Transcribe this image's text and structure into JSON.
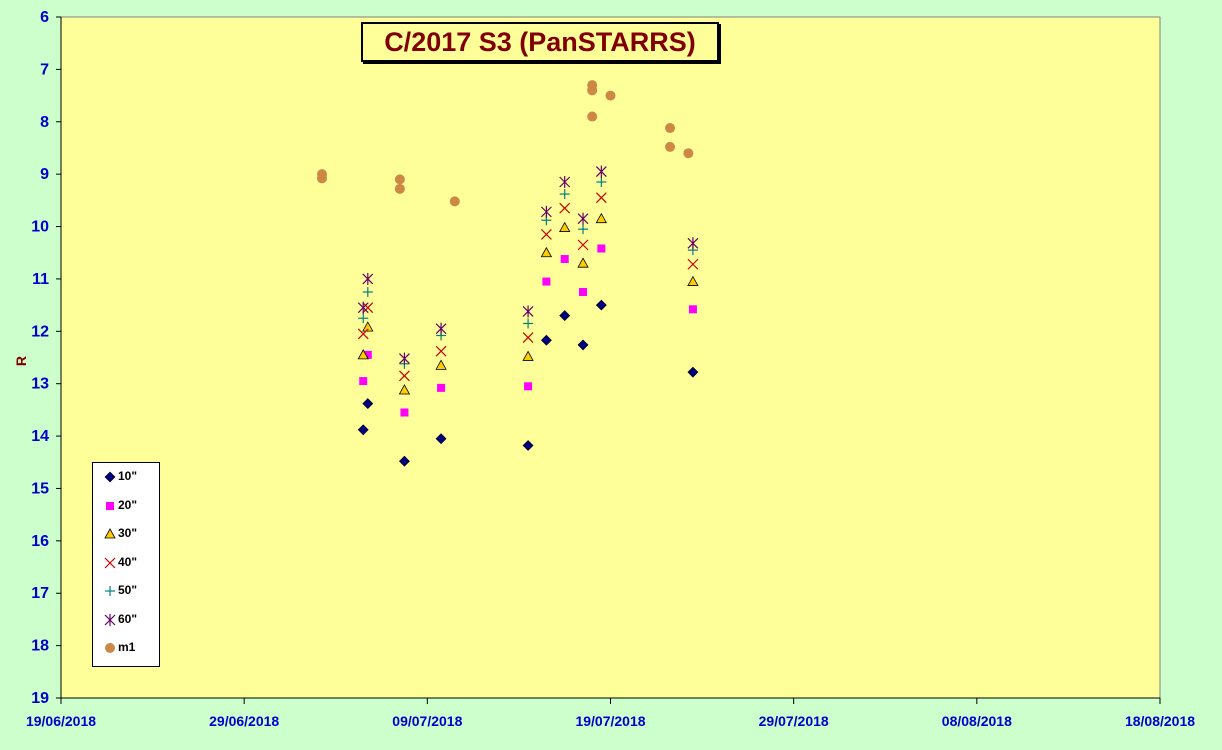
{
  "chart_data": {
    "type": "scatter",
    "title": "C/2017 S3 (PanSTARRS)",
    "xlabel": "",
    "ylabel": "R",
    "x_ticks": [
      "19/06/2018",
      "29/06/2018",
      "09/07/2018",
      "19/07/2018",
      "29/07/2018",
      "08/08/2018",
      "18/08/2018"
    ],
    "xlim": [
      "19/06/2018",
      "18/08/2018"
    ],
    "ylim": [
      19,
      6
    ],
    "y_inverted": true,
    "y_ticks": [
      6,
      7,
      8,
      9,
      10,
      11,
      12,
      13,
      14,
      15,
      16,
      17,
      18,
      19
    ],
    "grid": false,
    "legend_position": "bottom-left",
    "plot_background": "#ffff99",
    "page_background": "#ccffcc",
    "series": [
      {
        "name": "10\"",
        "marker": "diamond",
        "color": "#000080",
        "points": [
          [
            "05/07/2018 12:00",
            13.88
          ],
          [
            "05/07/2018 18:00",
            13.38
          ],
          [
            "07/07/2018 18:00",
            14.48
          ],
          [
            "09/07/2018 18:00",
            14.05
          ],
          [
            "14/07/2018 12:00",
            14.18
          ],
          [
            "15/07/2018 12:00",
            12.17
          ],
          [
            "16/07/2018 12:00",
            11.7
          ],
          [
            "17/07/2018 12:00",
            12.26
          ],
          [
            "18/07/2018 12:00",
            11.5
          ],
          [
            "23/07/2018 12:00",
            12.78
          ]
        ]
      },
      {
        "name": "20\"",
        "marker": "square",
        "color": "#ff00ff",
        "points": [
          [
            "05/07/2018 12:00",
            12.95
          ],
          [
            "05/07/2018 18:00",
            12.45
          ],
          [
            "07/07/2018 18:00",
            13.55
          ],
          [
            "09/07/2018 18:00",
            13.08
          ],
          [
            "14/07/2018 12:00",
            13.05
          ],
          [
            "15/07/2018 12:00",
            11.05
          ],
          [
            "16/07/2018 12:00",
            10.62
          ],
          [
            "17/07/2018 12:00",
            11.25
          ],
          [
            "18/07/2018 12:00",
            10.42
          ],
          [
            "23/07/2018 12:00",
            11.58
          ]
        ]
      },
      {
        "name": "30\"",
        "marker": "triangle",
        "color": "#ffcc00",
        "points": [
          [
            "05/07/2018 12:00",
            12.45
          ],
          [
            "05/07/2018 18:00",
            11.92
          ],
          [
            "07/07/2018 18:00",
            13.12
          ],
          [
            "09/07/2018 18:00",
            12.65
          ],
          [
            "14/07/2018 12:00",
            12.48
          ],
          [
            "15/07/2018 12:00",
            10.5
          ],
          [
            "16/07/2018 12:00",
            10.02
          ],
          [
            "17/07/2018 12:00",
            10.7
          ],
          [
            "18/07/2018 12:00",
            9.85
          ],
          [
            "23/07/2018 12:00",
            11.05
          ]
        ]
      },
      {
        "name": "40\"",
        "marker": "x",
        "color": "#cc0000",
        "points": [
          [
            "05/07/2018 12:00",
            12.05
          ],
          [
            "05/07/2018 18:00",
            11.55
          ],
          [
            "07/07/2018 18:00",
            12.85
          ],
          [
            "09/07/2018 18:00",
            12.38
          ],
          [
            "14/07/2018 12:00",
            12.12
          ],
          [
            "15/07/2018 12:00",
            10.15
          ],
          [
            "16/07/2018 12:00",
            9.65
          ],
          [
            "17/07/2018 12:00",
            10.35
          ],
          [
            "18/07/2018 12:00",
            9.45
          ],
          [
            "23/07/2018 12:00",
            10.72
          ]
        ]
      },
      {
        "name": "50\"",
        "marker": "plus",
        "color": "#008080",
        "points": [
          [
            "05/07/2018 12:00",
            11.75
          ],
          [
            "05/07/2018 18:00",
            11.25
          ],
          [
            "07/07/2018 18:00",
            12.62
          ],
          [
            "09/07/2018 18:00",
            12.08
          ],
          [
            "14/07/2018 12:00",
            11.85
          ],
          [
            "15/07/2018 12:00",
            9.88
          ],
          [
            "16/07/2018 12:00",
            9.38
          ],
          [
            "17/07/2018 12:00",
            10.05
          ],
          [
            "18/07/2018 12:00",
            9.15
          ],
          [
            "23/07/2018 12:00",
            10.45
          ]
        ]
      },
      {
        "name": "60\"",
        "marker": "asterisk",
        "color": "#660066",
        "points": [
          [
            "05/07/2018 12:00",
            11.55
          ],
          [
            "05/07/2018 18:00",
            11.0
          ],
          [
            "07/07/2018 18:00",
            12.52
          ],
          [
            "09/07/2018 18:00",
            11.95
          ],
          [
            "14/07/2018 12:00",
            11.62
          ],
          [
            "15/07/2018 12:00",
            9.72
          ],
          [
            "16/07/2018 12:00",
            9.15
          ],
          [
            "17/07/2018 12:00",
            9.85
          ],
          [
            "18/07/2018 12:00",
            8.95
          ],
          [
            "23/07/2018 12:00",
            10.32
          ]
        ]
      },
      {
        "name": "m1",
        "marker": "circle",
        "color": "#cc8844",
        "points": [
          [
            "03/07/2018 06:00",
            9.0
          ],
          [
            "03/07/2018 06:00",
            9.08
          ],
          [
            "07/07/2018 12:00",
            9.1
          ],
          [
            "07/07/2018 12:00",
            9.28
          ],
          [
            "10/07/2018 12:00",
            9.52
          ],
          [
            "18/07/2018 00:00",
            7.3
          ],
          [
            "18/07/2018 00:00",
            7.4
          ],
          [
            "18/07/2018 00:00",
            7.9
          ],
          [
            "19/07/2018 00:00",
            7.5
          ],
          [
            "22/07/2018 06:00",
            8.12
          ],
          [
            "22/07/2018 06:00",
            8.48
          ],
          [
            "23/07/2018 06:00",
            8.6
          ]
        ]
      }
    ]
  }
}
